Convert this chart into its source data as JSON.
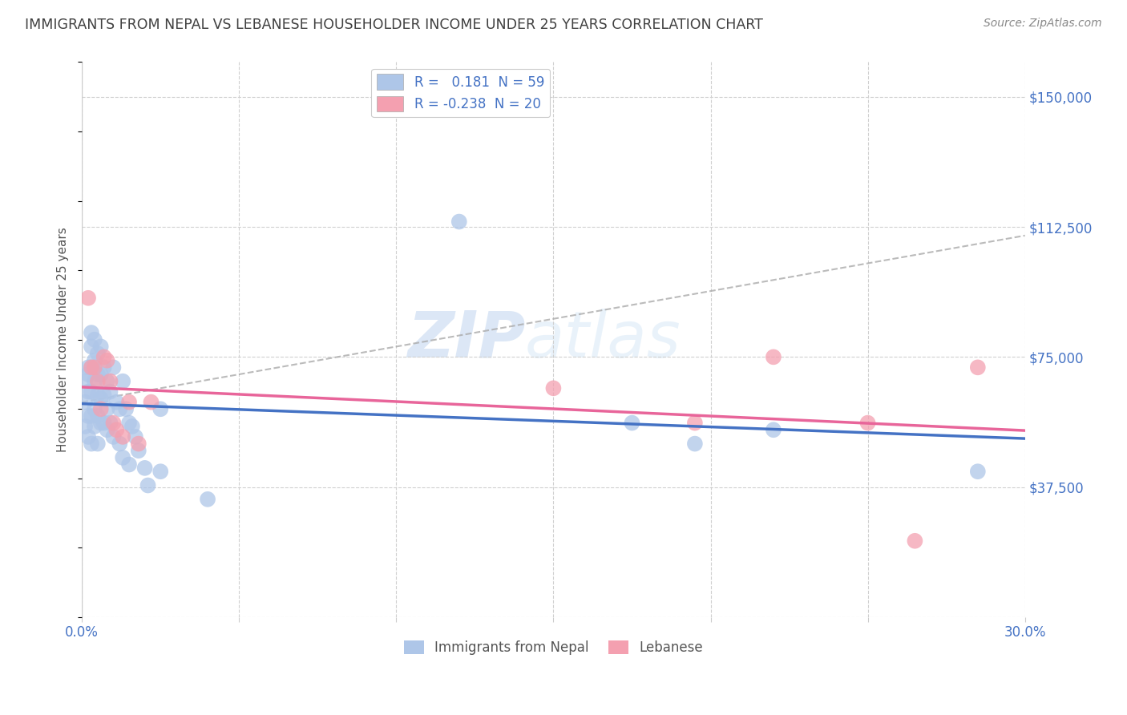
{
  "title": "IMMIGRANTS FROM NEPAL VS LEBANESE HOUSEHOLDER INCOME UNDER 25 YEARS CORRELATION CHART",
  "source": "Source: ZipAtlas.com",
  "ylabel": "Householder Income Under 25 years",
  "xlim": [
    0.0,
    0.3
  ],
  "ylim": [
    0,
    160000
  ],
  "yticks": [
    0,
    37500,
    75000,
    112500,
    150000
  ],
  "ytick_labels": [
    "",
    "$37,500",
    "$75,000",
    "$112,500",
    "$150,000"
  ],
  "xticks": [
    0.0,
    0.05,
    0.1,
    0.15,
    0.2,
    0.25,
    0.3
  ],
  "xtick_labels": [
    "0.0%",
    "",
    "",
    "",
    "",
    "",
    "30.0%"
  ],
  "watermark_zip": "ZIP",
  "watermark_atlas": "atlas",
  "nepal_color": "#aec6e8",
  "lebanese_color": "#f4a0b0",
  "nepal_line_color": "#4472C4",
  "lebanese_line_color": "#E8659A",
  "nepal_label": "R =   0.181  N = 59",
  "lebanese_label": "R = -0.238  N = 20",
  "nepal_x": [
    0.001,
    0.001,
    0.001,
    0.002,
    0.002,
    0.002,
    0.002,
    0.002,
    0.003,
    0.003,
    0.003,
    0.003,
    0.003,
    0.003,
    0.004,
    0.004,
    0.004,
    0.004,
    0.004,
    0.005,
    0.005,
    0.005,
    0.005,
    0.005,
    0.006,
    0.006,
    0.006,
    0.006,
    0.007,
    0.007,
    0.007,
    0.008,
    0.008,
    0.008,
    0.009,
    0.009,
    0.01,
    0.01,
    0.011,
    0.012,
    0.012,
    0.013,
    0.013,
    0.014,
    0.015,
    0.015,
    0.016,
    0.017,
    0.018,
    0.02,
    0.021,
    0.025,
    0.025,
    0.04,
    0.12,
    0.175,
    0.195,
    0.22,
    0.285
  ],
  "nepal_y": [
    68000,
    62000,
    55000,
    72000,
    70000,
    65000,
    58000,
    52000,
    82000,
    78000,
    72000,
    65000,
    58000,
    50000,
    80000,
    74000,
    68000,
    60000,
    55000,
    76000,
    70000,
    64000,
    58000,
    50000,
    78000,
    70000,
    63000,
    56000,
    72000,
    64000,
    56000,
    68000,
    60000,
    54000,
    65000,
    56000,
    72000,
    52000,
    62000,
    60000,
    50000,
    68000,
    46000,
    60000,
    56000,
    44000,
    55000,
    52000,
    48000,
    43000,
    38000,
    60000,
    42000,
    34000,
    114000,
    56000,
    50000,
    54000,
    42000
  ],
  "lebanese_x": [
    0.002,
    0.003,
    0.004,
    0.005,
    0.006,
    0.007,
    0.008,
    0.009,
    0.01,
    0.011,
    0.013,
    0.015,
    0.018,
    0.022,
    0.15,
    0.195,
    0.22,
    0.25,
    0.265,
    0.285
  ],
  "lebanese_y": [
    92000,
    72000,
    72000,
    68000,
    60000,
    75000,
    74000,
    68000,
    56000,
    54000,
    52000,
    62000,
    50000,
    62000,
    66000,
    56000,
    75000,
    56000,
    22000,
    72000
  ],
  "grid_color": "#d0d0d0",
  "background_color": "#ffffff",
  "title_color": "#404040",
  "axis_label_color": "#555555",
  "tick_color": "#4472C4"
}
